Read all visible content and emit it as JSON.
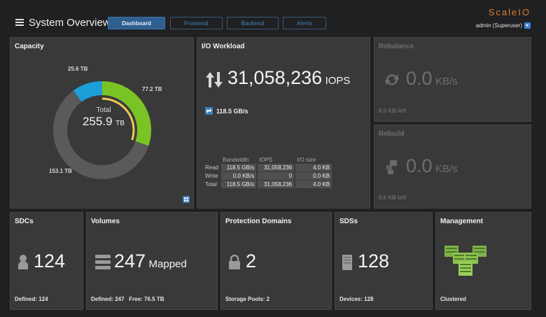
{
  "header": {
    "title": "System Overview",
    "tabs": [
      {
        "label": "Dashboard",
        "active": true
      },
      {
        "label": "Frontend",
        "active": false
      },
      {
        "label": "Backend",
        "active": false
      },
      {
        "label": "Alerts",
        "active": false
      }
    ],
    "brand": "ScaleIO",
    "user": "admin (Superuser)"
  },
  "colors": {
    "accent": "#2e5f8f",
    "brand": "#e07a2e",
    "used_green": "#7ac324",
    "spare_blue": "#1b9fd6",
    "free_gray": "#5a5a5b",
    "yellow_ring": "#f0c955"
  },
  "capacity": {
    "title": "Capacity",
    "total_label": "Total",
    "total_value": "255.9",
    "total_unit": "TB",
    "segments": [
      {
        "label": "77.2 TB",
        "value": 77.2,
        "color": "#7ac324"
      },
      {
        "label": "153.1 TB",
        "value": 153.1,
        "color": "#5a5a5b"
      },
      {
        "label": "25.6 TB",
        "value": 25.6,
        "color": "#1b9fd6"
      }
    ],
    "inner_ring_fraction": 0.3
  },
  "io": {
    "title": "I/O Workload",
    "iops": "31,058,236",
    "iops_unit": "IOPS",
    "bandwidth": "118.5 GB/s",
    "columns": [
      "Bandwidth",
      "IOPS",
      "I/O size"
    ],
    "rows": [
      {
        "label": "Read",
        "bandwidth": "118.5 GB/s",
        "iops": "31,058,236",
        "io_size": "4.0 KB"
      },
      {
        "label": "Write",
        "bandwidth": "0.0 KB/s",
        "iops": "0",
        "io_size": "0.0 KB"
      },
      {
        "label": "Total",
        "bandwidth": "118.5 GB/s",
        "iops": "31,058,236",
        "io_size": "4.0 KB"
      }
    ]
  },
  "rebalance": {
    "title": "Rebalance",
    "value": "0.0",
    "unit": "KB/s",
    "footer": "0.0 KB left"
  },
  "rebuild": {
    "title": "Rebuild",
    "value": "0.0",
    "unit": "KB/s",
    "footer": "0.0 KB left"
  },
  "sdcs": {
    "title": "SDCs",
    "value": "124",
    "footer": "Defined: 124"
  },
  "volumes": {
    "title": "Volumes",
    "value": "247",
    "suffix": "Mapped",
    "footer": "Defined: 247   Free: 76.5 TB"
  },
  "protection": {
    "title": "Protection Domains",
    "value": "2",
    "footer": "Storage Pools: 2"
  },
  "sdss": {
    "title": "SDSs",
    "value": "128",
    "footer": "Devices: 128"
  },
  "management": {
    "title": "Management",
    "footer": "Clustered"
  }
}
